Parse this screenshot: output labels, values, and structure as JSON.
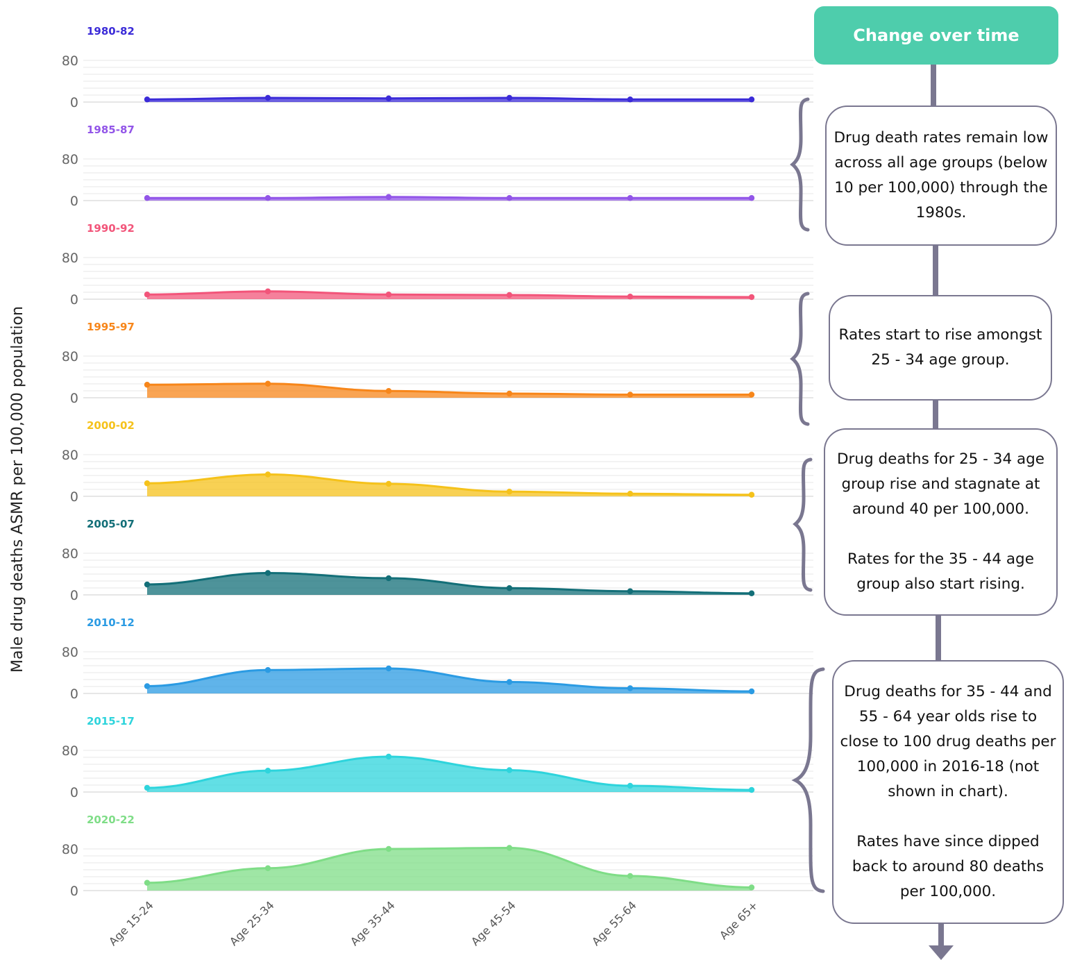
{
  "chart_data": {
    "type": "area",
    "ylabel": "Male drug deaths ASMR per 100,000 population",
    "categories": [
      "Age 15-24",
      "Age 25-34",
      "Age 35-44",
      "Age 45-54",
      "Age 55-64",
      "Age 65+"
    ],
    "yticks": [
      0,
      80
    ],
    "ylim": [
      0,
      80
    ],
    "grid": true,
    "series": [
      {
        "name": "1980-82",
        "color": "#3b2bd8",
        "values": [
          5,
          8,
          7,
          8,
          5,
          5
        ]
      },
      {
        "name": "1985-87",
        "color": "#9255e8",
        "values": [
          5,
          5,
          7,
          5,
          5,
          5
        ]
      },
      {
        "name": "1990-92",
        "color": "#f2557a",
        "values": [
          9,
          15,
          9,
          8,
          5,
          4
        ]
      },
      {
        "name": "1995-97",
        "color": "#f7861a",
        "values": [
          25,
          27,
          13,
          8,
          6,
          6
        ]
      },
      {
        "name": "2000-02",
        "color": "#f5c21b",
        "values": [
          25,
          42,
          24,
          9,
          5,
          3
        ]
      },
      {
        "name": "2005-07",
        "color": "#136f78",
        "values": [
          20,
          42,
          32,
          13,
          7,
          3
        ]
      },
      {
        "name": "2010-12",
        "color": "#2b9be3",
        "values": [
          14,
          45,
          48,
          22,
          10,
          4
        ]
      },
      {
        "name": "2015-17",
        "color": "#2ed4dc",
        "values": [
          8,
          41,
          68,
          42,
          12,
          4
        ]
      },
      {
        "name": "2020-22",
        "color": "#7fdd87",
        "values": [
          15,
          43,
          80,
          82,
          28,
          6
        ]
      }
    ]
  },
  "flow": {
    "header": "Change over time",
    "notes": [
      "Drug death rates remain low across all age groups (below 10 per 100,000) through the 1980s.",
      "Rates start to rise amongst 25 - 34 age group.",
      "Drug deaths for 25 - 34 age group rise and stagnate at around 40 per 100,000.\n\nRates for the 35 - 44 age group also start rising.",
      "Drug deaths for 35 - 44 and 55 - 64 year olds rise to close to 100 drug deaths per 100,000 in 2016-18 (not shown in chart).\n\nRates have since dipped back to around 80 deaths per 100,000."
    ]
  }
}
